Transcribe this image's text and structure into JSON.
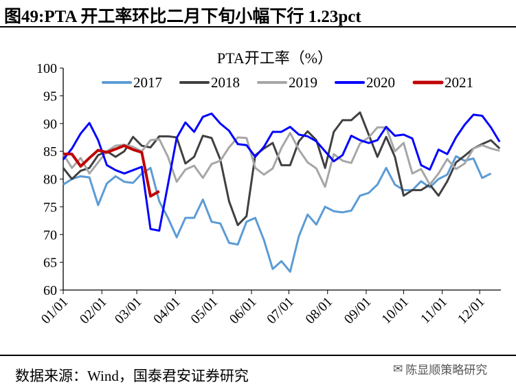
{
  "figure_title": "图49:PTA 开工率环比二月下旬小幅下行 1.23pct",
  "source": "数据来源：Wind，国泰君安证券研究",
  "watermark": "陈显顺策略研究",
  "chart_data": {
    "type": "line",
    "title": "PTA开工率（%）",
    "xlabel": "",
    "ylabel": "",
    "ylim": [
      60,
      100
    ],
    "yticks": [
      "60",
      "65",
      "70",
      "75",
      "80",
      "85",
      "90",
      "95",
      "100"
    ],
    "x_unit": "day of year",
    "xlim": [
      0,
      351
    ],
    "xtick_labels": [
      "01/01",
      "02/01",
      "03/01",
      "04/01",
      "05/01",
      "06/01",
      "07/01",
      "08/01",
      "09/01",
      "10/01",
      "11/01",
      "12/01"
    ],
    "xtick_days": [
      0,
      31,
      59,
      90,
      120,
      151,
      181,
      212,
      243,
      273,
      304,
      334
    ],
    "legend_position": "top",
    "grid": false,
    "series": [
      {
        "name": "2017",
        "color": "#5B9BD5",
        "width": 3,
        "points": [
          [
            0,
            79
          ],
          [
            7,
            80
          ],
          [
            14,
            80.5
          ],
          [
            21,
            80.3
          ],
          [
            28,
            75.3
          ],
          [
            35,
            79.2
          ],
          [
            42,
            80.5
          ],
          [
            49,
            79.5
          ],
          [
            56,
            79.3
          ],
          [
            63,
            81
          ],
          [
            70,
            82
          ],
          [
            77,
            76
          ],
          [
            84,
            73
          ],
          [
            91,
            69.5
          ],
          [
            98,
            73
          ],
          [
            105,
            73
          ],
          [
            112,
            76.3
          ],
          [
            119,
            72.3
          ],
          [
            126,
            72
          ],
          [
            133,
            68.5
          ],
          [
            140,
            68.2
          ],
          [
            147,
            72.3
          ],
          [
            154,
            73
          ],
          [
            161,
            69
          ],
          [
            168,
            63.8
          ],
          [
            175,
            65.2
          ],
          [
            182,
            63.3
          ],
          [
            189,
            69.7
          ],
          [
            196,
            73.6
          ],
          [
            203,
            71.8
          ],
          [
            210,
            75
          ],
          [
            217,
            74.2
          ],
          [
            224,
            74
          ],
          [
            231,
            74.3
          ],
          [
            238,
            77
          ],
          [
            245,
            77.5
          ],
          [
            252,
            79
          ],
          [
            259,
            82
          ],
          [
            266,
            79
          ],
          [
            273,
            78
          ],
          [
            280,
            78
          ],
          [
            287,
            79.6
          ],
          [
            294,
            78.5
          ],
          [
            301,
            80
          ],
          [
            308,
            80.8
          ],
          [
            315,
            84.1
          ],
          [
            322,
            83.3
          ],
          [
            329,
            83.7
          ],
          [
            336,
            80.2
          ],
          [
            343,
            81
          ]
        ]
      },
      {
        "name": "2018",
        "color": "#404040",
        "width": 3,
        "points": [
          [
            0,
            82
          ],
          [
            7,
            80
          ],
          [
            14,
            81.5
          ],
          [
            21,
            82
          ],
          [
            28,
            84.3
          ],
          [
            35,
            85
          ],
          [
            42,
            84
          ],
          [
            49,
            85
          ],
          [
            56,
            87.6
          ],
          [
            63,
            86
          ],
          [
            70,
            85.7
          ],
          [
            77,
            87.7
          ],
          [
            84,
            87.7
          ],
          [
            91,
            87.5
          ],
          [
            98,
            82.8
          ],
          [
            105,
            84
          ],
          [
            112,
            87.8
          ],
          [
            119,
            87.4
          ],
          [
            126,
            83.5
          ],
          [
            133,
            76
          ],
          [
            140,
            71.7
          ],
          [
            147,
            73.3
          ],
          [
            154,
            84.3
          ],
          [
            161,
            85.5
          ],
          [
            168,
            86.5
          ],
          [
            175,
            82.5
          ],
          [
            182,
            82.5
          ],
          [
            189,
            86.8
          ],
          [
            196,
            88.6
          ],
          [
            203,
            87
          ],
          [
            210,
            82
          ],
          [
            217,
            88.5
          ],
          [
            224,
            90.6
          ],
          [
            231,
            90.6
          ],
          [
            238,
            92
          ],
          [
            245,
            88
          ],
          [
            252,
            84
          ],
          [
            259,
            87.6
          ],
          [
            266,
            84
          ],
          [
            273,
            77
          ],
          [
            280,
            78
          ],
          [
            287,
            78
          ],
          [
            294,
            79
          ],
          [
            301,
            77
          ],
          [
            308,
            79.6
          ],
          [
            315,
            83
          ],
          [
            322,
            84.2
          ],
          [
            329,
            85.5
          ],
          [
            336,
            86.3
          ],
          [
            343,
            87
          ],
          [
            350,
            85.5
          ]
        ]
      },
      {
        "name": "2019",
        "color": "#A6A6A6",
        "width": 3,
        "points": [
          [
            0,
            84.5
          ],
          [
            7,
            82
          ],
          [
            14,
            83.8
          ],
          [
            21,
            81
          ],
          [
            28,
            83
          ],
          [
            35,
            85
          ],
          [
            42,
            86
          ],
          [
            49,
            86.2
          ],
          [
            56,
            85.8
          ],
          [
            63,
            85
          ],
          [
            70,
            87
          ],
          [
            77,
            87.2
          ],
          [
            84,
            84
          ],
          [
            91,
            79.5
          ],
          [
            98,
            81.7
          ],
          [
            105,
            82.4
          ],
          [
            112,
            80.2
          ],
          [
            119,
            82.7
          ],
          [
            126,
            83.3
          ],
          [
            133,
            85.7
          ],
          [
            140,
            87.5
          ],
          [
            147,
            87.4
          ],
          [
            154,
            82
          ],
          [
            161,
            80.8
          ],
          [
            168,
            81.9
          ],
          [
            175,
            85.6
          ],
          [
            182,
            88.3
          ],
          [
            189,
            85.3
          ],
          [
            196,
            83
          ],
          [
            203,
            81.9
          ],
          [
            210,
            78.6
          ],
          [
            217,
            84.5
          ],
          [
            224,
            83.3
          ],
          [
            231,
            82.9
          ],
          [
            238,
            86.4
          ],
          [
            245,
            87.5
          ],
          [
            252,
            89.3
          ],
          [
            259,
            89.3
          ],
          [
            266,
            85
          ],
          [
            273,
            86.5
          ],
          [
            280,
            81
          ],
          [
            287,
            81.8
          ],
          [
            294,
            79
          ],
          [
            301,
            81
          ],
          [
            308,
            83.6
          ],
          [
            315,
            81.8
          ],
          [
            322,
            82.8
          ],
          [
            329,
            85.5
          ],
          [
            336,
            86.1
          ],
          [
            343,
            85.5
          ],
          [
            350,
            85.1
          ]
        ]
      },
      {
        "name": "2020",
        "color": "#0000FF",
        "width": 3,
        "points": [
          [
            0,
            83.5
          ],
          [
            7,
            85.5
          ],
          [
            14,
            88.2
          ],
          [
            21,
            90.1
          ],
          [
            28,
            87
          ],
          [
            35,
            82.5
          ],
          [
            42,
            81.6
          ],
          [
            49,
            81
          ],
          [
            56,
            81.6
          ],
          [
            63,
            82.2
          ],
          [
            70,
            71
          ],
          [
            77,
            70.7
          ],
          [
            84,
            79
          ],
          [
            91,
            87.4
          ],
          [
            98,
            90.2
          ],
          [
            105,
            88.5
          ],
          [
            112,
            91.2
          ],
          [
            119,
            91.8
          ],
          [
            126,
            90
          ],
          [
            133,
            88.7
          ],
          [
            140,
            86.3
          ],
          [
            147,
            86.1
          ],
          [
            154,
            84
          ],
          [
            161,
            85.8
          ],
          [
            168,
            88.5
          ],
          [
            175,
            88.5
          ],
          [
            182,
            89.4
          ],
          [
            189,
            88
          ],
          [
            196,
            87.7
          ],
          [
            203,
            86.8
          ],
          [
            210,
            85
          ],
          [
            217,
            83.2
          ],
          [
            224,
            84.3
          ],
          [
            231,
            87.8
          ],
          [
            238,
            87
          ],
          [
            245,
            86.5
          ],
          [
            252,
            87
          ],
          [
            259,
            89.4
          ],
          [
            266,
            87.8
          ],
          [
            273,
            88
          ],
          [
            280,
            87.3
          ],
          [
            287,
            82.5
          ],
          [
            294,
            81.7
          ],
          [
            301,
            85.3
          ],
          [
            308,
            84.5
          ],
          [
            315,
            87.5
          ],
          [
            322,
            89.8
          ],
          [
            329,
            91.6
          ],
          [
            336,
            91.4
          ],
          [
            343,
            89.3
          ],
          [
            350,
            86.7
          ]
        ]
      },
      {
        "name": "2021",
        "color": "#C00000",
        "width": 4,
        "points": [
          [
            0,
            84.5
          ],
          [
            7,
            84.5
          ],
          [
            14,
            82.3
          ],
          [
            21,
            83.8
          ],
          [
            28,
            85.2
          ],
          [
            35,
            84.8
          ],
          [
            42,
            85.4
          ],
          [
            49,
            86
          ],
          [
            56,
            85.3
          ],
          [
            63,
            84.8
          ],
          [
            70,
            76.9
          ],
          [
            77,
            77.8
          ]
        ]
      }
    ]
  }
}
